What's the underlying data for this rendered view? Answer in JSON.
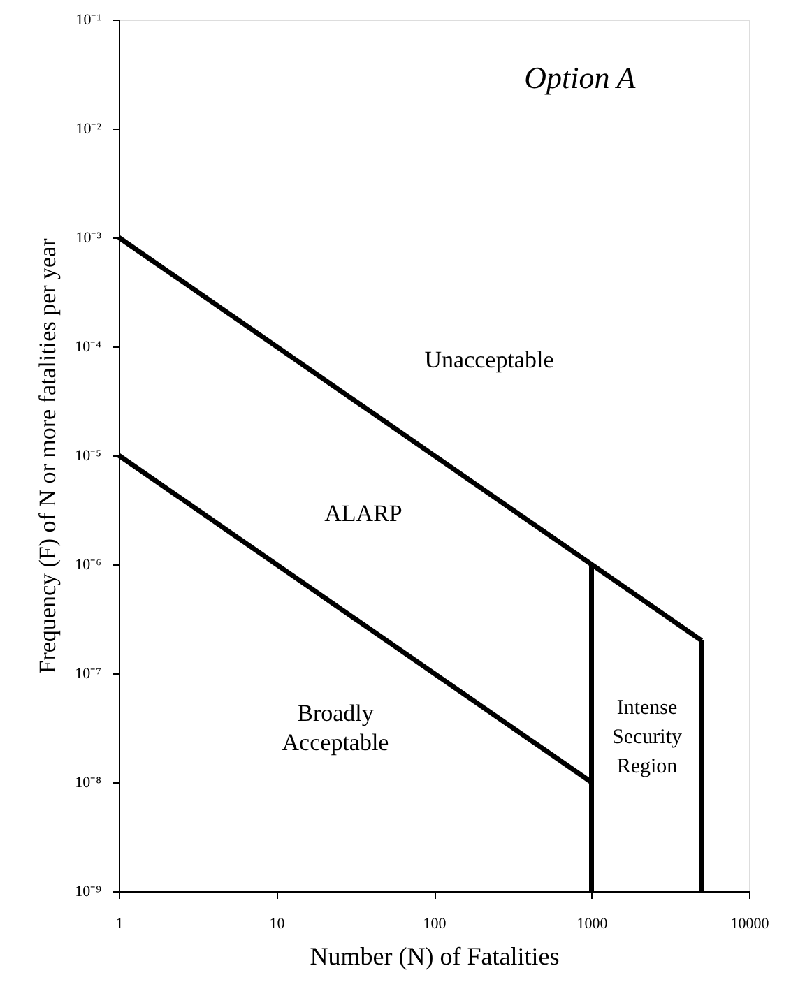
{
  "chart_data": {
    "type": "line",
    "title": "Option A",
    "xlabel": "Number (N) of Fatalities",
    "ylabel": "Frequency (F) of N or more fatalities per year",
    "log": "xy",
    "grid": false,
    "marker": "none",
    "line_style": "solid",
    "xlim": [
      1,
      10000
    ],
    "xticks": [
      1,
      10,
      100,
      1000,
      10000
    ],
    "ylim": [
      1e-09,
      0.1
    ],
    "yticks": [
      {
        "value": 1e-09,
        "label": "10⁻⁹"
      },
      {
        "value": 1e-08,
        "label": "10⁻⁸"
      },
      {
        "value": 1e-07,
        "label": "10⁻⁷"
      },
      {
        "value": 1e-06,
        "label": "10⁻⁶"
      },
      {
        "value": 1e-05,
        "label": "10⁻⁵"
      },
      {
        "value": 0.0001,
        "label": "10⁻⁴"
      },
      {
        "value": 0.001,
        "label": "10⁻³"
      },
      {
        "value": 0.01,
        "label": "10⁻²"
      },
      {
        "value": 0.1,
        "label": "10⁻¹"
      }
    ],
    "series": [
      {
        "color": "#000000",
        "x": [
          1,
          5000
        ],
        "values": [
          0.001,
          2e-07
        ]
      },
      {
        "color": "#000000",
        "x": [
          1,
          1000
        ],
        "values": [
          1e-05,
          1e-08
        ]
      },
      {
        "color": "#000000",
        "x": [
          1000,
          1000
        ],
        "values": [
          1e-09,
          1e-06
        ]
      },
      {
        "color": "#000000",
        "x": [
          5000,
          5000
        ],
        "values": [
          1e-09,
          2e-07
        ]
      }
    ],
    "annotations": [
      "Unacceptable",
      "ALARP",
      "Broadly\nAcceptable",
      "Intense\nSecurity\nRegion"
    ]
  }
}
